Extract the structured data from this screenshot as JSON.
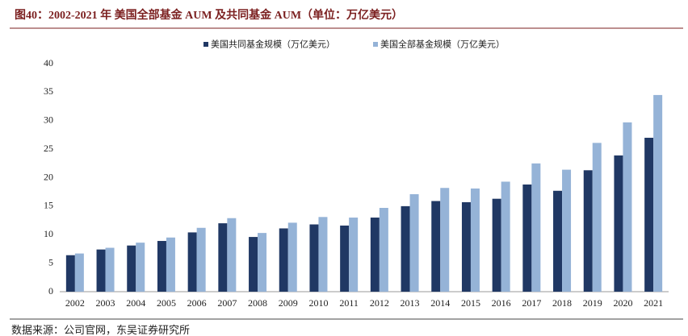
{
  "chart_data": {
    "type": "bar",
    "title": "图40：2002-2021 年 美国全部基金 AUM 及共同基金 AUM（单位：万亿美元）",
    "source": "数据来源：公司官网，东吴证券研究所",
    "categories": [
      "2002",
      "2003",
      "2004",
      "2005",
      "2006",
      "2007",
      "2008",
      "2009",
      "2010",
      "2011",
      "2012",
      "2013",
      "2014",
      "2015",
      "2016",
      "2017",
      "2018",
      "2019",
      "2020",
      "2021"
    ],
    "series": [
      {
        "name": "美国共同基金规模（万亿美元）",
        "color": "#203864",
        "values": [
          6.4,
          7.4,
          8.1,
          8.9,
          10.4,
          12.0,
          9.6,
          11.1,
          11.8,
          11.6,
          13.0,
          15.0,
          15.9,
          15.7,
          16.3,
          18.8,
          17.7,
          21.3,
          23.9,
          27.0
        ]
      },
      {
        "name": "美国全部基金规模（万亿美元）",
        "color": "#95b3d7",
        "values": [
          6.7,
          7.7,
          8.6,
          9.5,
          11.2,
          12.9,
          10.3,
          12.1,
          13.1,
          13.0,
          14.7,
          17.1,
          18.2,
          18.1,
          19.3,
          22.5,
          21.4,
          26.1,
          29.7,
          34.5
        ]
      }
    ],
    "ylim": [
      0,
      40
    ],
    "yticks": [
      0,
      5,
      10,
      15,
      20,
      25,
      30,
      35,
      40
    ],
    "grid": false
  }
}
